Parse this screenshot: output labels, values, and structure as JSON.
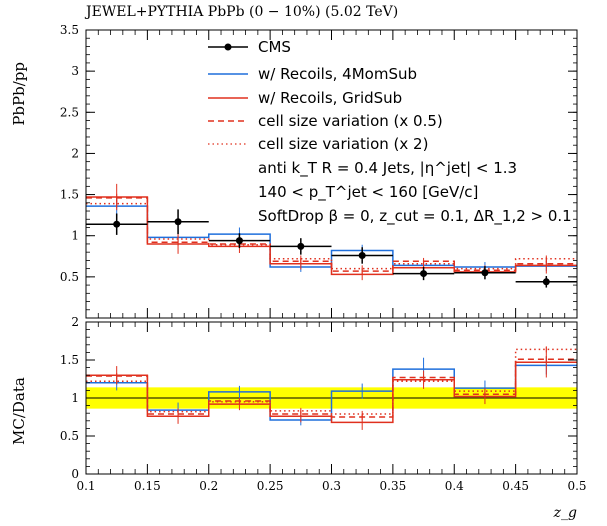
{
  "chart_data": [
    {
      "type": "line",
      "title": "JEWEL+PYTHIA PbPb (0 − 10%) (5.02 TeV)",
      "xlabel": "z_g",
      "ylabel": "PbPb/pp",
      "xlim": [
        0.1,
        0.5
      ],
      "ylim": [
        0,
        3.5
      ],
      "y_tick_labels": [
        "0.5",
        "1",
        "1.5",
        "2",
        "2.5",
        "3",
        "3.5"
      ],
      "y_ticks": [
        0.5,
        1,
        1.5,
        2,
        2.5,
        3,
        3.5
      ],
      "bin_edges": [
        0.1,
        0.15,
        0.2,
        0.25,
        0.3,
        0.35,
        0.4,
        0.45,
        0.5
      ],
      "legend_position": "top-right",
      "annotations": [
        "anti k_T R = 0.4 Jets, |η^jet| < 1.3",
        "140 < p_T^jet < 160 [GeV/c]",
        "SoftDrop β = 0, z_cut = 0.1, ΔR_1,2 > 0.1"
      ],
      "data_series": {
        "name": "CMS",
        "x": [
          0.125,
          0.175,
          0.225,
          0.275,
          0.325,
          0.375,
          0.425,
          0.475
        ],
        "y": [
          1.14,
          1.17,
          0.94,
          0.87,
          0.76,
          0.54,
          0.55,
          0.44
        ],
        "yerr": [
          0.13,
          0.15,
          0.09,
          0.1,
          0.1,
          0.08,
          0.08,
          0.07
        ],
        "color": "#000000"
      },
      "series": [
        {
          "name": "w/ Recoils, 4MomSub",
          "color": "#1f6fdc",
          "style": "solid",
          "values": [
            1.36,
            0.98,
            1.02,
            0.62,
            0.82,
            0.64,
            0.62,
            0.63
          ],
          "errors": [
            0.12,
            0.1,
            0.08,
            0.06,
            0.07,
            0.06,
            0.06,
            0.06
          ]
        },
        {
          "name": "w/ Recoils, GridSub",
          "color": "#e0301e",
          "style": "solid",
          "values": [
            1.47,
            0.9,
            0.87,
            0.66,
            0.53,
            0.61,
            0.56,
            0.64
          ],
          "errors": [
            0.16,
            0.12,
            0.08,
            0.07,
            0.07,
            0.07,
            0.06,
            0.1
          ]
        },
        {
          "name": "cell size variation (x 0.5)",
          "color": "#e0301e",
          "style": "dashed",
          "values": [
            1.46,
            0.92,
            0.9,
            0.69,
            0.57,
            0.69,
            0.58,
            0.66
          ],
          "errors": [
            0.05,
            0.04,
            0.04,
            0.04,
            0.04,
            0.04,
            0.04,
            0.04
          ]
        },
        {
          "name": "cell size variation (x 2)",
          "color": "#e0301e",
          "style": "dotted",
          "values": [
            1.39,
            0.96,
            0.89,
            0.72,
            0.6,
            0.66,
            0.6,
            0.72
          ],
          "errors": [
            0.05,
            0.04,
            0.04,
            0.04,
            0.04,
            0.04,
            0.04,
            0.04
          ]
        }
      ]
    },
    {
      "type": "line",
      "xlabel": "z_g",
      "ylabel": "MC/Data",
      "xlim": [
        0.1,
        0.5
      ],
      "ylim": [
        0,
        2
      ],
      "x_tick_labels": [
        "0.1",
        "0.15",
        "0.2",
        "0.25",
        "0.3",
        "0.35",
        "0.4",
        "0.45",
        "0.5"
      ],
      "x_ticks": [
        0.1,
        0.15,
        0.2,
        0.25,
        0.3,
        0.35,
        0.4,
        0.45,
        0.5
      ],
      "y_tick_labels": [
        "0",
        "0.5",
        "1",
        "1.5",
        "2"
      ],
      "y_ticks": [
        0,
        0.5,
        1,
        1.5,
        2
      ],
      "band": {
        "ylow": 0.86,
        "yhigh": 1.14,
        "color": "#ffff00"
      },
      "reference_line": 1,
      "bin_edges": [
        0.1,
        0.15,
        0.2,
        0.25,
        0.3,
        0.35,
        0.4,
        0.45,
        0.5
      ],
      "series": [
        {
          "name": "w/ Recoils, 4MomSub",
          "color": "#1f6fdc",
          "style": "solid",
          "values": [
            1.2,
            0.84,
            1.08,
            0.71,
            1.09,
            1.38,
            1.13,
            1.43
          ],
          "errors": [
            0.1,
            0.1,
            0.08,
            0.07,
            0.1,
            0.15,
            0.1,
            0.12
          ]
        },
        {
          "name": "w/ Recoils, GridSub",
          "color": "#e0301e",
          "style": "solid",
          "values": [
            1.3,
            0.76,
            0.92,
            0.76,
            0.68,
            1.24,
            1.02,
            1.47
          ],
          "errors": [
            0.12,
            0.1,
            0.08,
            0.08,
            0.1,
            0.12,
            0.1,
            0.2
          ]
        },
        {
          "name": "cell size variation (x 0.5)",
          "color": "#e0301e",
          "style": "dashed",
          "values": [
            1.29,
            0.79,
            0.96,
            0.79,
            0.75,
            1.27,
            1.05,
            1.51
          ],
          "errors": [
            0.04,
            0.04,
            0.04,
            0.04,
            0.04,
            0.04,
            0.04,
            0.04
          ]
        },
        {
          "name": "cell size variation (x 2)",
          "color": "#e0301e",
          "style": "dotted",
          "values": [
            1.22,
            0.82,
            0.95,
            0.83,
            0.79,
            1.22,
            1.09,
            1.64
          ],
          "errors": [
            0.04,
            0.04,
            0.04,
            0.04,
            0.04,
            0.04,
            0.04,
            0.04
          ]
        }
      ]
    }
  ]
}
